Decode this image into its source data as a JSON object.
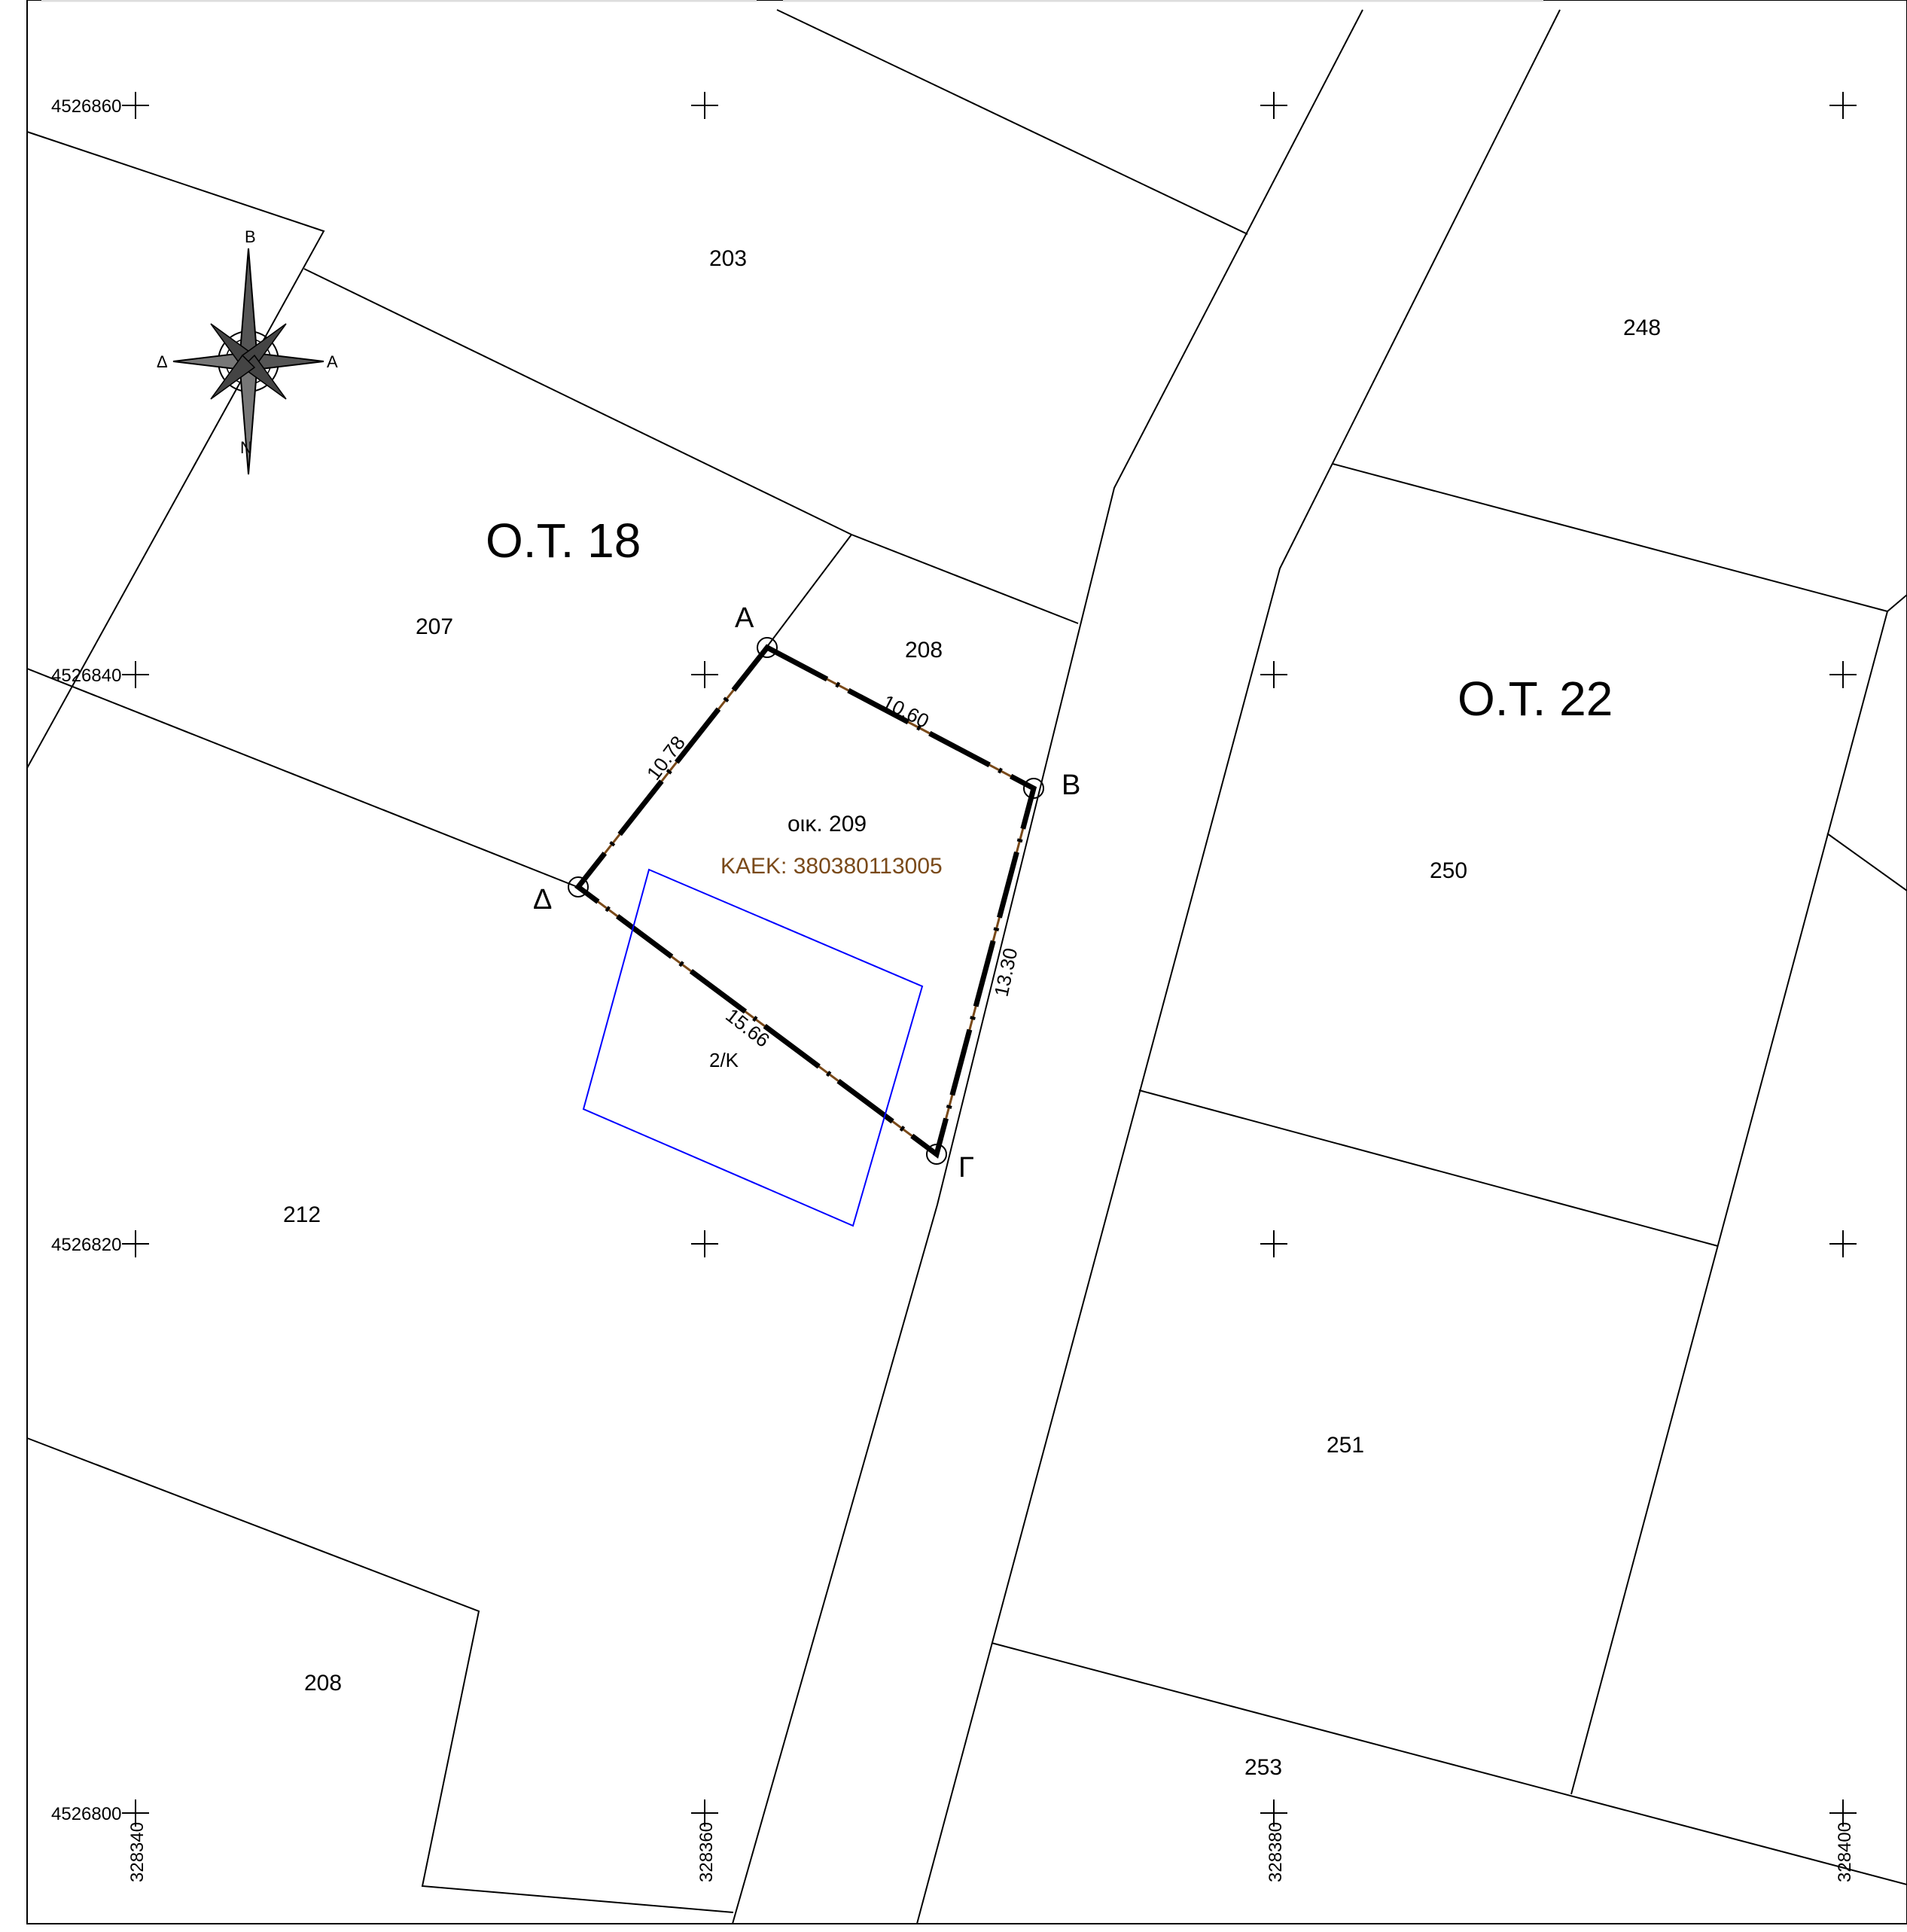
{
  "map": {
    "blocks": [
      {
        "id": "ot18",
        "label": "O.T. 18"
      },
      {
        "id": "ot22",
        "label": "O.T. 22"
      }
    ],
    "parcel_numbers": {
      "p203": "203",
      "p207": "207",
      "p208a": "208",
      "p208b": "208",
      "p212": "212",
      "p248": "248",
      "p250": "250",
      "p251": "251",
      "p253": "253"
    },
    "subject_parcel": {
      "label": "οικ. 209",
      "kaek": "KAEK: 380380113005",
      "highlight_color": "#7a4a1a",
      "vertices": {
        "A": "A",
        "B": "B",
        "G": "Γ",
        "D": "Δ"
      },
      "sides": {
        "AB": "10.60",
        "BG": "13.30",
        "GD": "15.66",
        "DA": "10.78"
      }
    },
    "building": {
      "label": "2/K",
      "color": "#0000ff"
    },
    "north_arrow": {
      "n": "B",
      "s": "N",
      "e": "A",
      "w": "Δ"
    },
    "grid": {
      "northings": [
        "4526860",
        "4526840",
        "4526820",
        "4526800"
      ],
      "eastings": [
        "328340",
        "328360",
        "328380",
        "328400"
      ]
    }
  }
}
